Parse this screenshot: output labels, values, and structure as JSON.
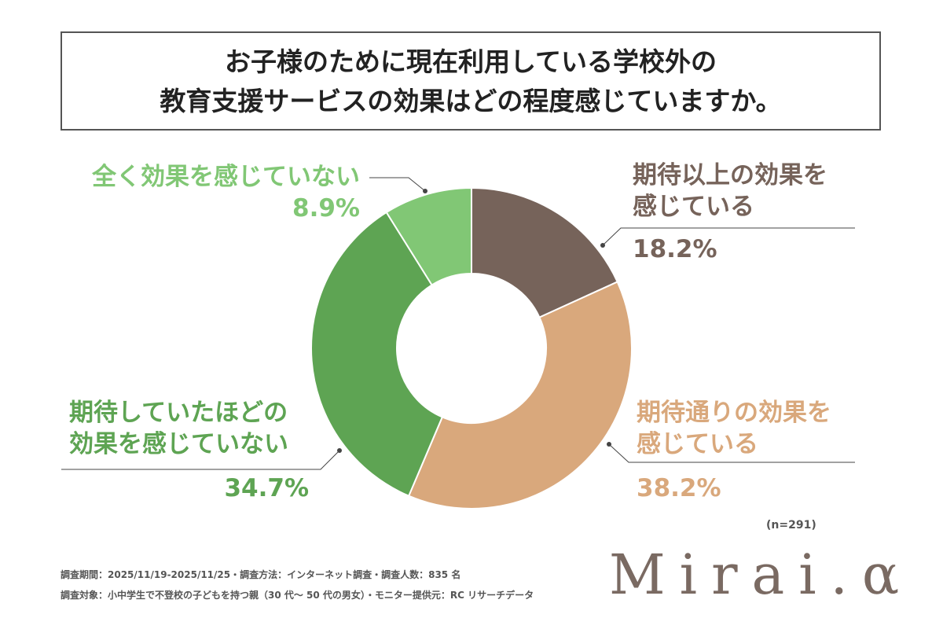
{
  "title": {
    "line1": "お子様のために現在利用している学校外の",
    "line2": "教育支援サービスの効果はどの程度感じていますか。"
  },
  "chart_data": {
    "type": "pie",
    "donut": true,
    "categories": [
      "期待以上の効果を感じている",
      "期待通りの効果を感じている",
      "期待していたほどの効果を感じていない",
      "全く効果を感じていない"
    ],
    "values": [
      18.2,
      38.2,
      34.7,
      8.9
    ],
    "colors": [
      "#76635a",
      "#d9a87c",
      "#5ea453",
      "#81c775"
    ],
    "labels": [
      {
        "line1": "期待以上の効果を",
        "line2": "感じている",
        "pct": "18.2%"
      },
      {
        "line1": "期待通りの効果を",
        "line2": "感じている",
        "pct": "38.2%"
      },
      {
        "line1": "期待していたほどの",
        "line2": "効果を感じていない",
        "pct": "34.7%"
      },
      {
        "line1": "全く効果を感じていない",
        "line2": "",
        "pct": "8.9%"
      }
    ],
    "n": "(n=291)"
  },
  "footer": {
    "line1": "調査期間：2025/11/19-2025/11/25・調査方法：インターネット調査・調査人数：835 名",
    "line2": "調査対象：小中学生で不登校の子どもを持つ親（30 代～ 50 代の男女）・モニター提供元：RC リサーチデータ"
  },
  "logo": "Mirai.α"
}
